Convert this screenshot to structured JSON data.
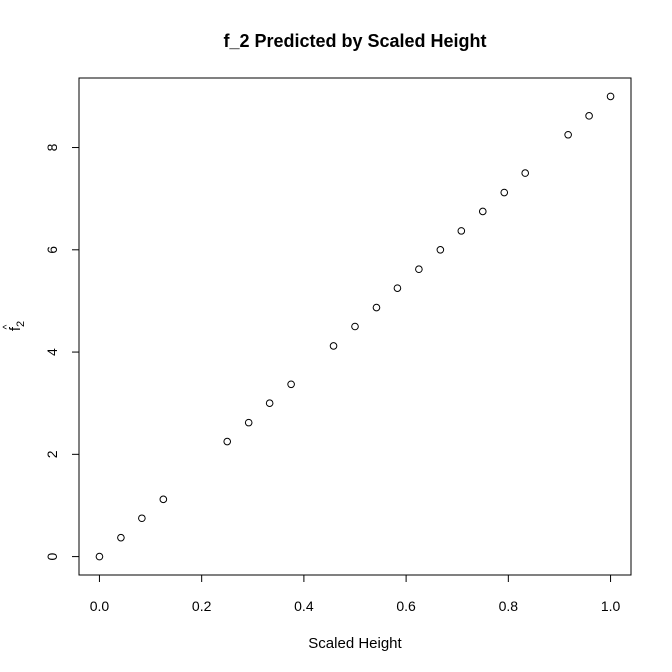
{
  "chart_data": {
    "type": "scatter",
    "title": "f_2 Predicted by Scaled Height",
    "xlabel": "Scaled Height",
    "ylabel_base": "f",
    "ylabel_subscript": "2",
    "ylabel_hat": "^",
    "xlim": [
      -0.04,
      1.04
    ],
    "ylim": [
      -0.36,
      9.36
    ],
    "xticks": [
      "0.0",
      "0.2",
      "0.4",
      "0.6",
      "0.8",
      "1.0"
    ],
    "yticks": [
      "0",
      "2",
      "4",
      "6",
      "8"
    ],
    "grid": false,
    "marker": "open-circle",
    "series": [
      {
        "x": [
          0.0,
          0.042,
          0.083,
          0.125,
          0.25,
          0.292,
          0.333,
          0.375,
          0.458,
          0.5,
          0.542,
          0.583,
          0.625,
          0.667,
          0.708,
          0.75,
          0.792,
          0.833,
          0.917,
          0.958,
          1.0
        ],
        "y": [
          0.0,
          0.37,
          0.75,
          1.12,
          2.25,
          2.62,
          3.0,
          3.37,
          4.12,
          4.5,
          4.87,
          5.25,
          5.62,
          6.0,
          6.37,
          6.75,
          7.12,
          7.5,
          8.25,
          8.62,
          9.0
        ]
      }
    ]
  }
}
